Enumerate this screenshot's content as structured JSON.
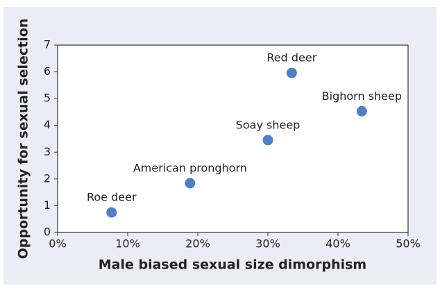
{
  "chart_data": {
    "type": "scatter",
    "x_label": "Male biased sexual size dimorphism",
    "y_label": "Opportunity for sexual selection",
    "point_labels": [
      "Roe deer",
      "American pronghorn",
      "Soay sheep",
      "Red deer",
      "Bighorn sheep"
    ],
    "x": [
      7.7,
      18.9,
      30,
      33.4,
      43.4
    ],
    "values": [
      0.75,
      1.84,
      3.45,
      5.96,
      4.53
    ],
    "color": "#4f7fc8",
    "xlim": [
      0,
      50
    ],
    "xticks": [
      {
        "value": 0,
        "label": "0%"
      },
      {
        "value": 10,
        "label": "10%"
      },
      {
        "value": 20,
        "label": "20%"
      },
      {
        "value": 30,
        "label": "30%"
      },
      {
        "value": 40,
        "label": "40%"
      },
      {
        "value": 50,
        "label": "50%"
      }
    ],
    "ylim": [
      0,
      7
    ],
    "yticks": [
      0,
      1,
      2,
      3,
      4,
      5,
      6,
      7
    ]
  }
}
